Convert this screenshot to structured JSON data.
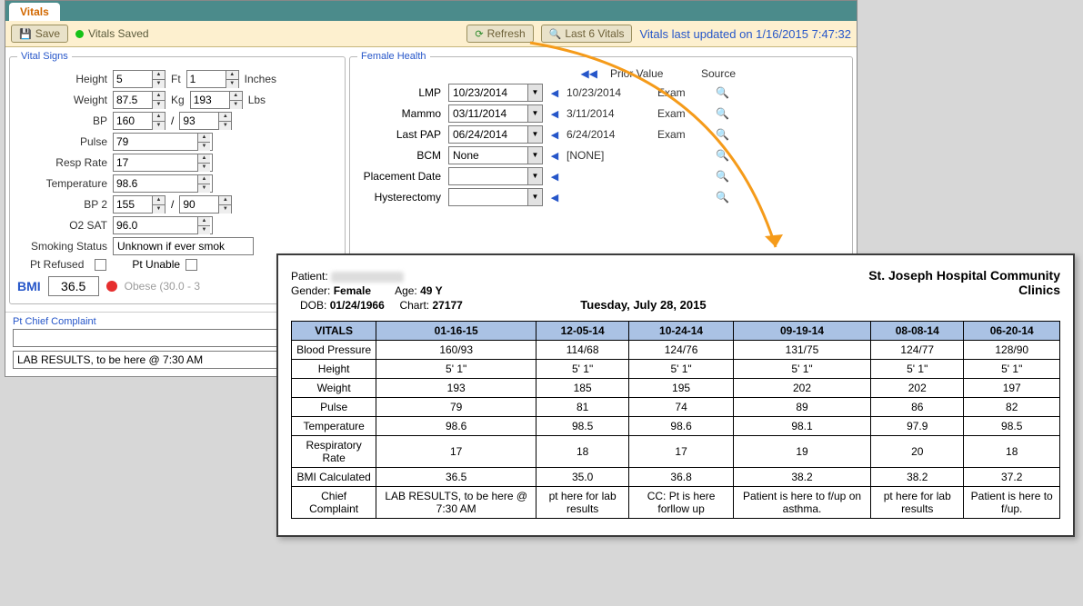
{
  "tab": {
    "label": "Vitals"
  },
  "toolbar": {
    "save": "Save",
    "status": "Vitals Saved",
    "refresh": "Refresh",
    "last6": "Last 6 Vitals",
    "updated": "Vitals last updated on 1/16/2015 7:47:32"
  },
  "vital_signs": {
    "legend": "Vital Signs",
    "height_label": "Height",
    "height_ft": "5",
    "height_in": "1",
    "ft_unit": "Ft",
    "in_unit": "Inches",
    "weight_label": "Weight",
    "weight_kg": "87.5",
    "weight_lbs": "193",
    "kg_unit": "Kg",
    "lbs_unit": "Lbs",
    "bp_label": "BP",
    "bp_sys": "160",
    "bp_dia": "93",
    "pulse_label": "Pulse",
    "pulse": "79",
    "resp_label": "Resp Rate",
    "resp": "17",
    "temp_label": "Temperature",
    "temp": "98.6",
    "bp2_label": "BP 2",
    "bp2_sys": "155",
    "bp2_dia": "90",
    "o2_label": "O2 SAT",
    "o2": "96.0",
    "smoking_label": "Smoking Status",
    "smoking": "Unknown if ever smok",
    "pt_refused": "Pt Refused",
    "pt_unable": "Pt Unable",
    "bmi_label": "BMI",
    "bmi": "36.5",
    "bmi_text": "Obese (30.0 - 3"
  },
  "female_health": {
    "legend": "Female Health",
    "header_prior": "Prior Value",
    "header_source": "Source",
    "rows": [
      {
        "label": "LMP",
        "value": "10/23/2014",
        "prior": "10/23/2014",
        "source": "Exam"
      },
      {
        "label": "Mammo",
        "value": "03/11/2014",
        "prior": "3/11/2014",
        "source": "Exam"
      },
      {
        "label": "Last PAP",
        "value": "06/24/2014",
        "prior": "6/24/2014",
        "source": "Exam"
      },
      {
        "label": "BCM",
        "value": "None",
        "prior": "[NONE]",
        "source": ""
      },
      {
        "label": "Placement Date",
        "value": "",
        "prior": "",
        "source": ""
      },
      {
        "label": "Hysterectomy",
        "value": "",
        "prior": "",
        "source": ""
      }
    ]
  },
  "complaint": {
    "legend": "Pt Chief Complaint",
    "text": "",
    "lab": "LAB RESULTS, to be here @ 7:30 AM"
  },
  "report": {
    "patient_label": "Patient:",
    "gender_label": "Gender:",
    "gender": "Female",
    "age_label": "Age:",
    "age": "49 Y",
    "dob_label": "DOB:",
    "dob": "01/24/1966",
    "chart_label": "Chart:",
    "chart": "27177",
    "date": "Tuesday, July 28, 2015",
    "org": "St. Joseph Hospital Community Clinics",
    "table": {
      "header": [
        "VITALS",
        "01-16-15",
        "12-05-14",
        "10-24-14",
        "09-19-14",
        "08-08-14",
        "06-20-14"
      ],
      "rows": [
        [
          "Blood Pressure",
          "160/93",
          "114/68",
          "124/76",
          "131/75",
          "124/77",
          "128/90"
        ],
        [
          "Height",
          "5' 1\"",
          "5' 1\"",
          "5' 1\"",
          "5' 1\"",
          "5' 1\"",
          "5' 1\""
        ],
        [
          "Weight",
          "193",
          "185",
          "195",
          "202",
          "202",
          "197"
        ],
        [
          "Pulse",
          "79",
          "81",
          "74",
          "89",
          "86",
          "82"
        ],
        [
          "Temperature",
          "98.6",
          "98.5",
          "98.6",
          "98.1",
          "97.9",
          "98.5"
        ],
        [
          "Respiratory Rate",
          "17",
          "18",
          "17",
          "19",
          "20",
          "18"
        ],
        [
          "BMI Calculated",
          "36.5",
          "35.0",
          "36.8",
          "38.2",
          "38.2",
          "37.2"
        ],
        [
          "Chief Complaint",
          "LAB RESULTS, to be here @ 7:30 AM",
          "pt here for lab results",
          "CC: Pt is here forllow up",
          "Patient is here to f/up on asthma.",
          "pt here for lab results",
          "Patient is here to f/up."
        ]
      ]
    }
  },
  "colors": {
    "tab_accent": "#d26800",
    "toolbar_bg": "#fdf0cf",
    "legend": "#2656c9",
    "table_header": "#aac2e4",
    "arrow": "#f59b1a"
  }
}
